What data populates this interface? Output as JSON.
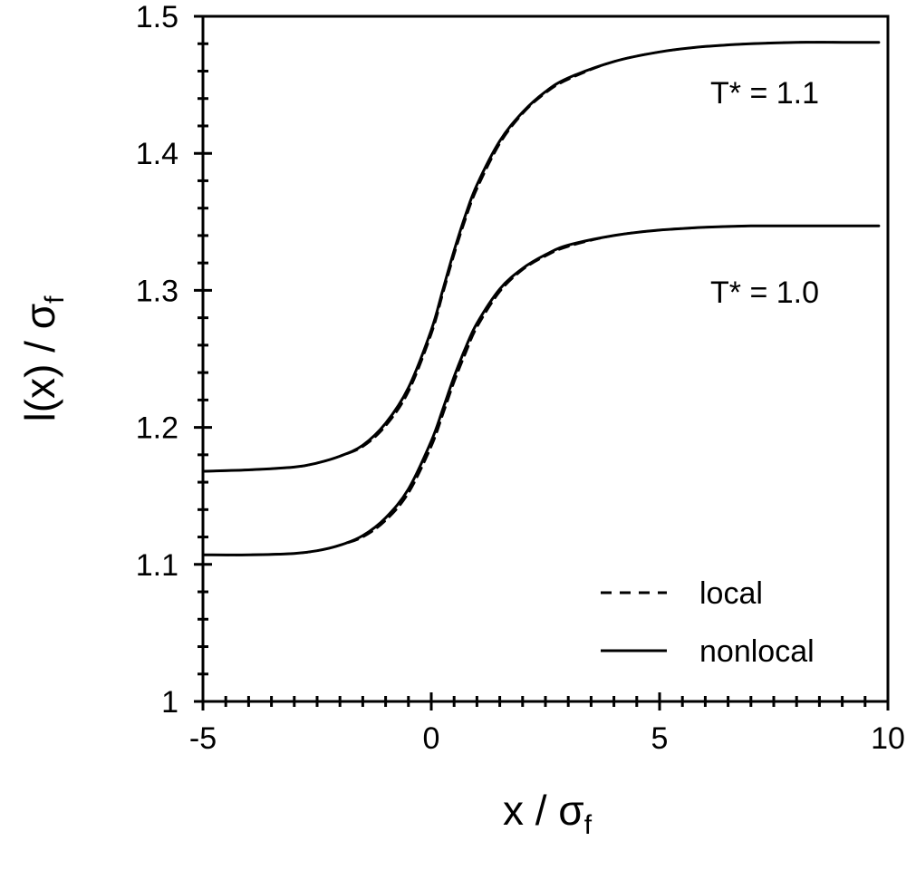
{
  "chart_data": {
    "type": "line",
    "title": "",
    "xlabel": {
      "main": "x / σ",
      "sub": "f"
    },
    "ylabel": {
      "main": "l(x) / σ",
      "sub": "f"
    },
    "xlim": [
      -5,
      10
    ],
    "ylim": [
      1.0,
      1.5
    ],
    "xticks": [
      -5,
      0,
      5,
      10
    ],
    "xtick_labels": [
      "-5",
      "0",
      "5",
      "10"
    ],
    "yticks": [
      1.0,
      1.1,
      1.2,
      1.3,
      1.4,
      1.5
    ],
    "ytick_labels": [
      "1",
      "1.1",
      "1.2",
      "1.3",
      "1.4",
      "1.5"
    ],
    "grid": false,
    "legend_position": "bottom-right",
    "legend": [
      {
        "label": "local",
        "style": "dashed"
      },
      {
        "label": "nonlocal",
        "style": "solid"
      }
    ],
    "annotations": [
      {
        "text": "T* = 1.1",
        "x": 8.4,
        "y": 1.455
      },
      {
        "text": "T* = 1.0",
        "x": 8.4,
        "y": 1.307
      }
    ],
    "series": [
      {
        "name": "nonlocal",
        "group": "T* = 1.1",
        "style": "solid",
        "x": [
          -5,
          -4,
          -3,
          -2.5,
          -2,
          -1.5,
          -1,
          -0.5,
          0,
          0.25,
          0.5,
          0.75,
          1,
          1.5,
          2,
          2.5,
          3,
          4,
          5,
          6,
          7,
          8,
          9,
          9.8
        ],
        "y": [
          1.168,
          1.169,
          1.171,
          1.174,
          1.179,
          1.187,
          1.203,
          1.229,
          1.271,
          1.3,
          1.329,
          1.355,
          1.377,
          1.409,
          1.43,
          1.445,
          1.455,
          1.467,
          1.474,
          1.478,
          1.48,
          1.481,
          1.481,
          1.481
        ]
      },
      {
        "name": "local",
        "group": "T* = 1.1",
        "style": "dashed",
        "x": [
          -5,
          -4,
          -3,
          -2.5,
          -2,
          -1.5,
          -1,
          -0.5,
          0,
          0.25,
          0.5,
          0.75,
          1,
          1.5,
          2,
          2.5,
          3,
          4,
          5,
          6,
          7,
          8,
          9,
          9.8
        ],
        "y": [
          1.168,
          1.169,
          1.171,
          1.174,
          1.179,
          1.186,
          1.201,
          1.226,
          1.268,
          1.297,
          1.326,
          1.352,
          1.374,
          1.407,
          1.429,
          1.444,
          1.454,
          1.467,
          1.474,
          1.478,
          1.48,
          1.481,
          1.481,
          1.481
        ]
      },
      {
        "name": "nonlocal",
        "group": "T* = 1.0",
        "style": "solid",
        "x": [
          -5,
          -4,
          -3,
          -2.5,
          -2,
          -1.5,
          -1,
          -0.5,
          0,
          0.25,
          0.5,
          0.75,
          1,
          1.5,
          2,
          2.5,
          3,
          4,
          5,
          6,
          7,
          8,
          9,
          9.8
        ],
        "y": [
          1.107,
          1.107,
          1.108,
          1.11,
          1.114,
          1.121,
          1.134,
          1.155,
          1.19,
          1.213,
          1.237,
          1.258,
          1.276,
          1.301,
          1.316,
          1.326,
          1.333,
          1.34,
          1.344,
          1.346,
          1.347,
          1.347,
          1.347,
          1.347
        ]
      },
      {
        "name": "local",
        "group": "T* = 1.0",
        "style": "dashed",
        "x": [
          -5,
          -4,
          -3,
          -2.5,
          -2,
          -1.5,
          -1,
          -0.5,
          0,
          0.25,
          0.5,
          0.75,
          1,
          1.5,
          2,
          2.5,
          3,
          4,
          5,
          6,
          7,
          8,
          9,
          9.8
        ],
        "y": [
          1.107,
          1.107,
          1.108,
          1.11,
          1.114,
          1.12,
          1.132,
          1.152,
          1.186,
          1.209,
          1.233,
          1.254,
          1.273,
          1.299,
          1.315,
          1.325,
          1.332,
          1.34,
          1.344,
          1.346,
          1.347,
          1.347,
          1.347,
          1.347
        ]
      }
    ]
  }
}
